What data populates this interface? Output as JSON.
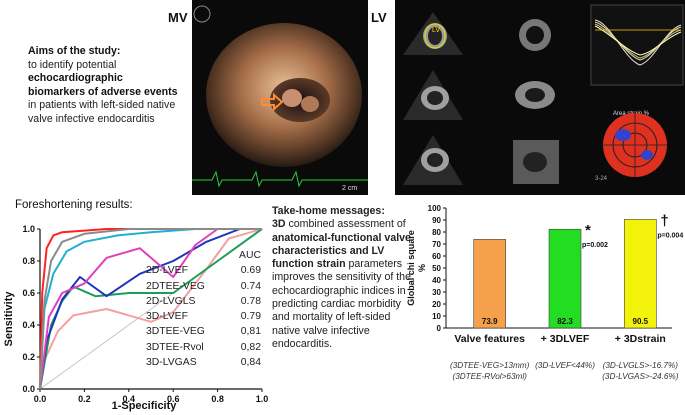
{
  "labels": {
    "mv": "MV",
    "lv": "LV"
  },
  "aims": {
    "heading": "Aims of the study:",
    "pre": "to identify potential ",
    "bold": "echocardiographic biomarkers of adverse events",
    "post": " in patients with left-sided native valve infective endocarditis"
  },
  "echo": {
    "scale": "2 cm",
    "lv_label": "LV",
    "area_strain": "Area strain %",
    "time": "3-24"
  },
  "foreshortening": {
    "title": "Foreshortening results:"
  },
  "chart_data": [
    {
      "type": "line",
      "title": "",
      "xlabel": "1-Specificity",
      "ylabel": "Sensitivity",
      "xlim": [
        0,
        1
      ],
      "ylim": [
        0,
        1
      ],
      "xticks": [
        "0.0",
        "0.2",
        "0.4",
        "0.6",
        "0.8",
        "1.0"
      ],
      "yticks": [
        "0.0",
        "0.2",
        "0.4",
        "0.6",
        "0.8",
        "1.0"
      ],
      "auc_header": "AUC",
      "series": [
        {
          "name": "2D-LVEF",
          "auc": "0.69",
          "color": "#f4a0a0",
          "x": [
            0,
            0.02,
            0.08,
            0.15,
            0.3,
            0.5,
            0.6,
            0.75,
            0.85,
            1
          ],
          "y": [
            0,
            0.18,
            0.36,
            0.46,
            0.5,
            0.42,
            0.48,
            0.75,
            0.94,
            1
          ]
        },
        {
          "name": "2DTEE-VEG",
          "auc": "0.74",
          "color": "#1a9e5a",
          "x": [
            0,
            0.05,
            0.1,
            0.15,
            0.25,
            0.4,
            0.6,
            0.8,
            1
          ],
          "y": [
            0,
            0.4,
            0.55,
            0.64,
            0.58,
            0.6,
            0.6,
            0.8,
            1
          ]
        },
        {
          "name": "2D-LVGLS",
          "auc": "0.78",
          "color": "#2233bb",
          "x": [
            0,
            0.03,
            0.1,
            0.18,
            0.3,
            0.45,
            0.6,
            0.75,
            0.9,
            1
          ],
          "y": [
            0,
            0.3,
            0.56,
            0.7,
            0.58,
            0.72,
            0.8,
            0.92,
            1,
            1
          ]
        },
        {
          "name": "3D-LVEF",
          "auc": "0.79",
          "color": "#e040c0",
          "x": [
            0,
            0.04,
            0.1,
            0.2,
            0.3,
            0.45,
            0.6,
            0.7,
            0.8,
            1
          ],
          "y": [
            0,
            0.45,
            0.6,
            0.66,
            0.82,
            0.88,
            0.7,
            0.9,
            1,
            1
          ]
        },
        {
          "name": "3DTEE-VEG",
          "auc": "0,81",
          "color": "#20b0d0",
          "x": [
            0,
            0.02,
            0.06,
            0.12,
            0.2,
            0.35,
            0.5,
            0.7,
            1
          ],
          "y": [
            0,
            0.5,
            0.72,
            0.86,
            0.92,
            0.96,
            0.98,
            1,
            1
          ]
        },
        {
          "name": "3DTEE-Rvol",
          "auc": "0,82",
          "color": "#ff2222",
          "x": [
            0,
            0.01,
            0.03,
            0.06,
            0.1,
            0.2,
            0.3,
            0.5,
            0.7,
            1
          ],
          "y": [
            0,
            0.6,
            0.88,
            0.96,
            0.98,
            0.99,
            1,
            1,
            1,
            1
          ]
        },
        {
          "name": "3D-LVGAS",
          "auc": "0,84",
          "color": "#8a8a8a",
          "x": [
            0,
            0.02,
            0.05,
            0.1,
            0.2,
            0.4,
            0.6,
            0.8,
            1
          ],
          "y": [
            0,
            0.55,
            0.8,
            0.92,
            0.97,
            1,
            1,
            1,
            1
          ]
        }
      ]
    },
    {
      "type": "bar",
      "title": "",
      "xlabel": "",
      "ylabel": "Global chi square\n%",
      "ylim": [
        0,
        100
      ],
      "yticks": [
        "0",
        "10",
        "20",
        "30",
        "40",
        "50",
        "60",
        "70",
        "80",
        "90",
        "100"
      ],
      "categories": [
        "Valve features",
        "+ 3DLVEF",
        "+ 3Dstrain"
      ],
      "values": [
        73.9,
        82.3,
        90.5
      ],
      "value_labels": [
        "73.9",
        "82.3",
        "90.5"
      ],
      "colors": [
        "#f5a04a",
        "#22dd22",
        "#f2f20a"
      ],
      "annotations": [
        {
          "category": "+ 3DLVEF",
          "symbol": "*",
          "p": "p=0.002"
        },
        {
          "category": "+ 3Dstrain",
          "symbol": "†",
          "p": "p=0.004"
        }
      ],
      "conditions": [
        [
          "(3DTEE-VEG>13mm)",
          "(3DTEE-RVol>63ml)"
        ],
        [
          "(3D-LVEF<44%)"
        ],
        [
          "(3D-LVGLS>-16.7%)",
          "(3D-LVGAS>-24.6%)"
        ]
      ]
    }
  ],
  "take_home": {
    "title": "Take-home messages:",
    "b1": "3D",
    "t1": " combined assessment of ",
    "b2": "anatomical-functional valve characteristics and LV function strain",
    "t2": " parameters improves the sensitivity of the echocardiographic indices in predicting cardiac morbidity and mortality of left-sided native valve infective endocarditis."
  }
}
